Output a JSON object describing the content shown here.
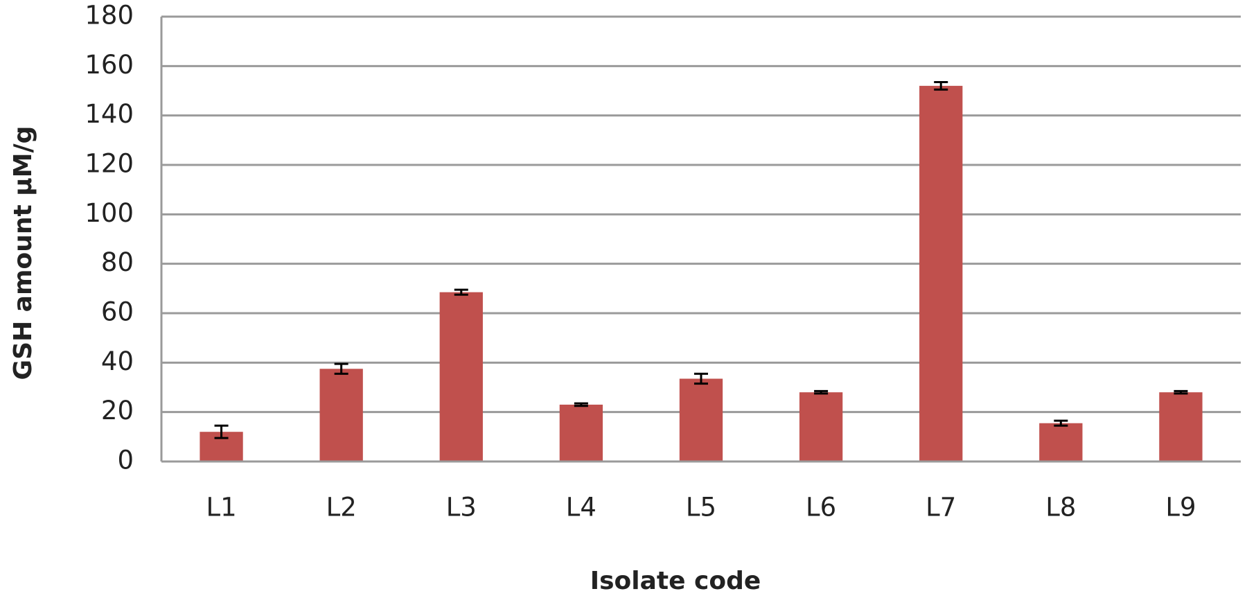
{
  "chart_data": {
    "type": "bar",
    "x_label": "Isolate code",
    "y_label": "GSH amount µM/g",
    "categories": [
      "L1",
      "L2",
      "L3",
      "L4",
      "L5",
      "L6",
      "L7",
      "L8",
      "L9"
    ],
    "values": [
      12,
      37.5,
      68.5,
      23,
      33.5,
      28,
      152,
      15.5,
      28
    ],
    "errors": [
      2.5,
      2,
      1,
      0.5,
      2,
      0.5,
      1.5,
      1,
      0.5
    ],
    "color": "#c0504d",
    "ylim": [
      0,
      180
    ],
    "yticks": [
      0,
      20,
      40,
      60,
      80,
      100,
      120,
      140,
      160,
      180
    ],
    "grid": true
  }
}
